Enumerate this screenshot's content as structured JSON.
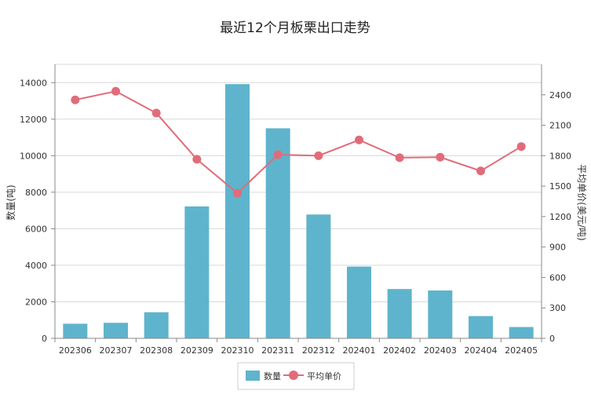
{
  "chart_data": {
    "type": "bar",
    "title": "最近12个月板栗出口走势",
    "categories": [
      "202306",
      "202307",
      "202308",
      "202309",
      "202310",
      "202311",
      "202312",
      "202401",
      "202402",
      "202403",
      "202404",
      "202405"
    ],
    "ylabel": "数量(吨)",
    "ylabel_right": "平均单价(美元/吨)",
    "ylim": [
      0,
      15000
    ],
    "y_ticks": [
      0,
      2000,
      4000,
      6000,
      8000,
      10000,
      12000,
      14000
    ],
    "y2lim": [
      0,
      2700
    ],
    "y2_ticks": [
      0,
      300,
      600,
      900,
      1200,
      1500,
      1800,
      2100,
      2400
    ],
    "grid": true,
    "legend_position": "bottom",
    "series": [
      {
        "name": "数量",
        "type": "bar",
        "axis": "left",
        "color": "#5eb4cc",
        "values": [
          800,
          850,
          1430,
          7220,
          13920,
          11500,
          6780,
          3930,
          2700,
          2620,
          1220,
          620
        ]
      },
      {
        "name": "平均单价",
        "type": "line",
        "axis": "right",
        "color": "#e06c7a",
        "values": [
          2350,
          2435,
          2220,
          1765,
          1430,
          1810,
          1800,
          1955,
          1780,
          1785,
          1650,
          1890
        ]
      }
    ]
  }
}
